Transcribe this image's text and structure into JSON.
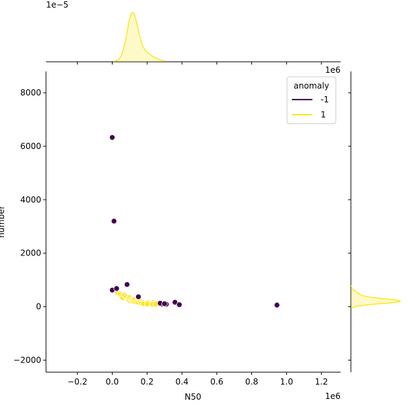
{
  "chart_data": {
    "type": "scatter",
    "xlabel": "N50",
    "ylabel": "number",
    "xlim": [
      -380000,
      1310000
    ],
    "ylim": [
      -2450,
      8800
    ],
    "x_ticks": [
      -200000,
      0,
      200000,
      400000,
      600000,
      800000,
      1000000,
      1200000
    ],
    "x_tick_labels": [
      "−0.2",
      "0.0",
      "0.2",
      "0.4",
      "0.6",
      "0.8",
      "1.0",
      "1.2"
    ],
    "y_ticks": [
      -2000,
      0,
      2000,
      4000,
      6000,
      8000
    ],
    "y_tick_labels": [
      "−2000",
      "0",
      "2000",
      "4000",
      "6000",
      "8000"
    ],
    "x_offset_label": "1e6",
    "right_top_offset_label": "1e6",
    "top_offset_label": "1e−5",
    "legend": {
      "title": "anomaly",
      "placement": "top-right",
      "entries": [
        {
          "label": "-1",
          "color": "#440154"
        },
        {
          "label": "1",
          "color": "#fde725"
        }
      ]
    },
    "series": [
      {
        "name": "-1",
        "color": "#440154",
        "points": [
          [
            0,
            6330
          ],
          [
            10000,
            3200
          ],
          [
            0,
            620
          ],
          [
            25000,
            680
          ],
          [
            85000,
            830
          ],
          [
            150000,
            370
          ],
          [
            285000,
            95
          ],
          [
            310000,
            90
          ],
          [
            360000,
            165
          ],
          [
            385000,
            75
          ],
          [
            945000,
            60
          ],
          [
            275000,
            130
          ],
          [
            300000,
            110
          ]
        ]
      },
      {
        "name": "1",
        "color": "#fde725",
        "points": [
          [
            30000,
            520
          ],
          [
            45000,
            470
          ],
          [
            55000,
            390
          ],
          [
            60000,
            330
          ],
          [
            70000,
            430
          ],
          [
            80000,
            360
          ],
          [
            90000,
            300
          ],
          [
            95000,
            250
          ],
          [
            100000,
            340
          ],
          [
            105000,
            220
          ],
          [
            110000,
            280
          ],
          [
            115000,
            240
          ],
          [
            120000,
            200
          ],
          [
            125000,
            260
          ],
          [
            130000,
            180
          ],
          [
            140000,
            170
          ],
          [
            150000,
            160
          ],
          [
            160000,
            210
          ],
          [
            165000,
            140
          ],
          [
            175000,
            150
          ],
          [
            185000,
            130
          ],
          [
            195000,
            120
          ],
          [
            205000,
            160
          ],
          [
            215000,
            130
          ],
          [
            225000,
            110
          ],
          [
            235000,
            150
          ],
          [
            245000,
            120
          ],
          [
            255000,
            140
          ],
          [
            265000,
            100
          ],
          [
            275000,
            105
          ],
          [
            290000,
            130
          ],
          [
            230000,
            90
          ],
          [
            180000,
            110
          ],
          [
            200000,
            100
          ],
          [
            250000,
            95
          ]
        ]
      }
    ],
    "top_marginal": {
      "type": "kde",
      "series": "1",
      "peak_x": 115000,
      "bandwidth": 30000,
      "support": [
        10000,
        300000
      ]
    },
    "right_marginal": {
      "type": "kde",
      "series": "1",
      "peak_y": 200,
      "bandwidth": 90,
      "support": [
        -50,
        800
      ]
    }
  }
}
